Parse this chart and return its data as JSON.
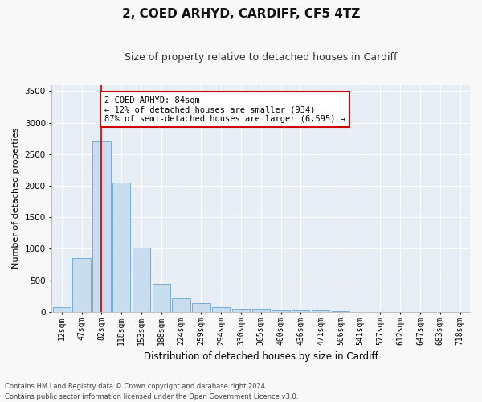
{
  "title": "2, COED ARHYD, CARDIFF, CF5 4TZ",
  "subtitle": "Size of property relative to detached houses in Cardiff",
  "xlabel": "Distribution of detached houses by size in Cardiff",
  "ylabel": "Number of detached properties",
  "bar_color": "#c9ddf0",
  "bar_edge_color": "#7aadd4",
  "background_color": "#e8eef5",
  "fig_background": "#f8f8f8",
  "grid_color": "#ffffff",
  "categories": [
    "12sqm",
    "47sqm",
    "82sqm",
    "118sqm",
    "153sqm",
    "188sqm",
    "224sqm",
    "259sqm",
    "294sqm",
    "330sqm",
    "365sqm",
    "400sqm",
    "436sqm",
    "471sqm",
    "506sqm",
    "541sqm",
    "577sqm",
    "612sqm",
    "647sqm",
    "683sqm",
    "718sqm"
  ],
  "values": [
    75,
    850,
    2720,
    2050,
    1020,
    450,
    210,
    140,
    75,
    55,
    45,
    30,
    25,
    20,
    5,
    3,
    2,
    2,
    1,
    1,
    1
  ],
  "ylim": [
    0,
    3600
  ],
  "yticks": [
    0,
    500,
    1000,
    1500,
    2000,
    2500,
    3000,
    3500
  ],
  "property_bin_index": 2,
  "vline_x": 2.0,
  "annotation_text_line1": "2 COED ARHYD: 84sqm",
  "annotation_text_line2": "← 12% of detached houses are smaller (934)",
  "annotation_text_line3": "87% of semi-detached houses are larger (6,595) →",
  "annotation_box_color": "#ffffff",
  "annotation_border_color": "#cc0000",
  "vline_color": "#cc0000",
  "footnote1": "Contains HM Land Registry data © Crown copyright and database right 2024.",
  "footnote2": "Contains public sector information licensed under the Open Government Licence v3.0."
}
